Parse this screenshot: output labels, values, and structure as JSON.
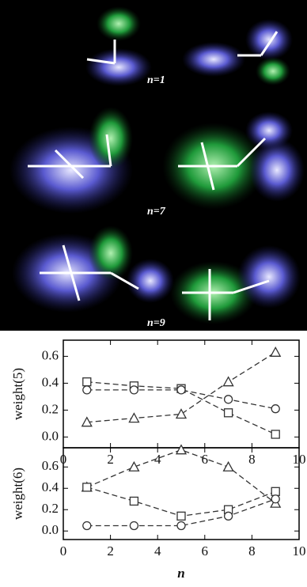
{
  "image_labels": [
    "n=1",
    "n=7",
    "n=9"
  ],
  "chart_data": [
    {
      "type": "line",
      "ylabel": "weight(5)",
      "x": [
        1,
        3,
        5,
        7,
        9
      ],
      "ylim": [
        -0.08,
        0.72
      ],
      "yticks": [
        0.0,
        0.2,
        0.4,
        0.6
      ],
      "yticklabels": [
        "0.0",
        "0.2",
        "0.4",
        "0.6"
      ],
      "xlim": [
        0,
        10
      ],
      "xticks": [
        0,
        2,
        4,
        6,
        8,
        10
      ],
      "series": [
        {
          "marker": "square",
          "color": "#333333",
          "values": [
            0.41,
            0.38,
            0.36,
            0.18,
            0.02
          ]
        },
        {
          "marker": "circle",
          "color": "#333333",
          "values": [
            0.35,
            0.35,
            0.35,
            0.28,
            0.21
          ]
        },
        {
          "marker": "triangle",
          "color": "#333333",
          "values": [
            0.11,
            0.14,
            0.17,
            0.41,
            0.63
          ]
        }
      ]
    },
    {
      "type": "line",
      "ylabel": "weight(6)",
      "xlabel": "n",
      "x": [
        1,
        3,
        5,
        7,
        9
      ],
      "ylim": [
        -0.08,
        0.78
      ],
      "yticks": [
        0.0,
        0.2,
        0.4,
        0.6
      ],
      "yticklabels": [
        "0.0",
        "0.2",
        "0.4",
        "0.6"
      ],
      "xlim": [
        0,
        10
      ],
      "xticks": [
        0,
        2,
        4,
        6,
        8,
        10
      ],
      "series": [
        {
          "marker": "triangle",
          "color": "#333333",
          "values": [
            0.41,
            0.6,
            0.76,
            0.6,
            0.26
          ]
        },
        {
          "marker": "square",
          "color": "#333333",
          "values": [
            0.41,
            0.28,
            0.14,
            0.2,
            0.37
          ]
        },
        {
          "marker": "circle",
          "color": "#333333",
          "values": [
            0.05,
            0.05,
            0.05,
            0.14,
            0.3
          ]
        }
      ]
    }
  ]
}
